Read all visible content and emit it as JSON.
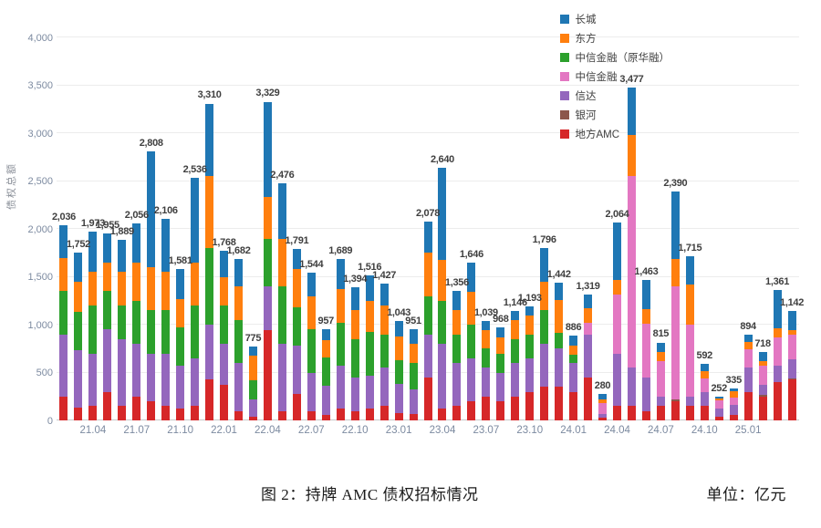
{
  "caption": {
    "title": "图 2：持牌 AMC 债权招标情况",
    "unit": "单位：亿元"
  },
  "chart_data": {
    "type": "bar",
    "stacked": true,
    "title": "持牌 AMC 债权招标情况",
    "ylabel": "债权总额",
    "unit": "亿元",
    "ylim": [
      0,
      4000
    ],
    "y_tick_step": 500,
    "grid": true,
    "legend_position": "top-right-inside",
    "legend": [
      {
        "name": "长城",
        "color": "#1f77b4"
      },
      {
        "name": "东方",
        "color": "#ff7f0e"
      },
      {
        "name": "中信金融（原华融）",
        "color": "#2ca02c"
      },
      {
        "name": "中信金融",
        "color": "#e377c2"
      },
      {
        "name": "信达",
        "color": "#9467bd"
      },
      {
        "name": "银河",
        "color": "#8c564b"
      },
      {
        "name": "地方AMC",
        "color": "#d62728"
      }
    ],
    "stack_order_bottom_to_top": [
      "地方AMC",
      "银河",
      "信达",
      "中信金融",
      "中信金融（原华融）",
      "东方",
      "长城"
    ],
    "segment_colors_bottom_to_top": [
      "#d62728",
      "#8c564b",
      "#9467bd",
      "#e377c2",
      "#2ca02c",
      "#ff7f0e",
      "#1f77b4"
    ],
    "x_tick_labels": [
      {
        "label": "21.04",
        "bar_index": 2
      },
      {
        "label": "21.07",
        "bar_index": 5
      },
      {
        "label": "21.10",
        "bar_index": 8
      },
      {
        "label": "22.01",
        "bar_index": 11
      },
      {
        "label": "22.04",
        "bar_index": 14
      },
      {
        "label": "22.07",
        "bar_index": 17
      },
      {
        "label": "22.10",
        "bar_index": 20
      },
      {
        "label": "23.01",
        "bar_index": 23
      },
      {
        "label": "23.04",
        "bar_index": 26
      },
      {
        "label": "23.07",
        "bar_index": 29
      },
      {
        "label": "23.10",
        "bar_index": 32
      },
      {
        "label": "24.01",
        "bar_index": 35
      },
      {
        "label": "24.04",
        "bar_index": 38
      },
      {
        "label": "24.07",
        "bar_index": 41
      },
      {
        "label": "24.10",
        "bar_index": 44
      },
      {
        "label": "25.01",
        "bar_index": 47
      }
    ],
    "bars": [
      {
        "label": "2,036",
        "total": 2036,
        "segments": [
          250,
          0,
          650,
          0,
          450,
          350,
          336
        ]
      },
      {
        "label": "1,752",
        "total": 1752,
        "segments": [
          130,
          0,
          600,
          0,
          400,
          320,
          302
        ]
      },
      {
        "label": "1,973",
        "total": 1973,
        "segments": [
          150,
          0,
          550,
          0,
          500,
          350,
          423
        ]
      },
      {
        "label": "1,955",
        "total": 1955,
        "segments": [
          300,
          0,
          650,
          0,
          400,
          300,
          305
        ]
      },
      {
        "label": "1,889",
        "total": 1889,
        "segments": [
          150,
          0,
          700,
          0,
          350,
          350,
          339
        ]
      },
      {
        "label": "2,056",
        "total": 2056,
        "segments": [
          250,
          0,
          550,
          0,
          450,
          400,
          406
        ]
      },
      {
        "label": "2,808",
        "total": 2808,
        "segments": [
          200,
          0,
          500,
          0,
          450,
          450,
          1208
        ]
      },
      {
        "label": "2,106",
        "total": 2106,
        "segments": [
          150,
          0,
          550,
          0,
          450,
          400,
          556
        ]
      },
      {
        "label": "1,581",
        "total": 1581,
        "segments": [
          120,
          0,
          450,
          0,
          400,
          300,
          311
        ]
      },
      {
        "label": "2,536",
        "total": 2536,
        "segments": [
          150,
          0,
          500,
          0,
          550,
          450,
          886
        ]
      },
      {
        "label": "3,310",
        "total": 3310,
        "segments": [
          430,
          0,
          570,
          0,
          800,
          750,
          760
        ]
      },
      {
        "label": "1,768",
        "total": 1768,
        "segments": [
          370,
          0,
          430,
          0,
          400,
          300,
          268
        ]
      },
      {
        "label": "1,682",
        "total": 1682,
        "segments": [
          100,
          0,
          500,
          0,
          450,
          350,
          282
        ]
      },
      {
        "label": "775",
        "total": 775,
        "segments": [
          40,
          0,
          180,
          0,
          200,
          255,
          100
        ]
      },
      {
        "label": "3,329",
        "total": 3329,
        "segments": [
          940,
          0,
          460,
          0,
          500,
          430,
          999
        ]
      },
      {
        "label": "2,476",
        "total": 2476,
        "segments": [
          100,
          0,
          700,
          0,
          600,
          500,
          576
        ]
      },
      {
        "label": "1,791",
        "total": 1791,
        "segments": [
          280,
          0,
          500,
          0,
          400,
          400,
          211
        ]
      },
      {
        "label": "1,544",
        "total": 1544,
        "segments": [
          100,
          0,
          400,
          0,
          450,
          350,
          244
        ]
      },
      {
        "label": "957",
        "total": 957,
        "segments": [
          60,
          0,
          300,
          0,
          300,
          180,
          117
        ]
      },
      {
        "label": "1,689",
        "total": 1689,
        "segments": [
          120,
          0,
          450,
          0,
          450,
          350,
          319
        ]
      },
      {
        "label": "1,394",
        "total": 1394,
        "segments": [
          100,
          0,
          350,
          0,
          400,
          300,
          244
        ]
      },
      {
        "label": "1,516",
        "total": 1516,
        "segments": [
          120,
          0,
          350,
          0,
          450,
          330,
          266
        ]
      },
      {
        "label": "1,427",
        "total": 1427,
        "segments": [
          150,
          0,
          400,
          0,
          350,
          300,
          227
        ]
      },
      {
        "label": "1,043",
        "total": 1043,
        "segments": [
          80,
          0,
          300,
          0,
          250,
          250,
          163
        ]
      },
      {
        "label": "951",
        "total": 951,
        "segments": [
          70,
          0,
          250,
          0,
          280,
          200,
          151
        ]
      },
      {
        "label": "2,078",
        "total": 2078,
        "segments": [
          450,
          0,
          450,
          0,
          400,
          450,
          328
        ]
      },
      {
        "label": "2,640",
        "total": 2640,
        "segments": [
          120,
          0,
          680,
          0,
          450,
          430,
          960
        ]
      },
      {
        "label": "1,356",
        "total": 1356,
        "segments": [
          150,
          0,
          450,
          0,
          300,
          256,
          200
        ]
      },
      {
        "label": "1,646",
        "total": 1646,
        "segments": [
          200,
          0,
          450,
          0,
          350,
          346,
          300
        ]
      },
      {
        "label": "1,039",
        "total": 1039,
        "segments": [
          250,
          0,
          300,
          0,
          200,
          189,
          100
        ]
      },
      {
        "label": "968",
        "total": 968,
        "segments": [
          200,
          0,
          300,
          0,
          200,
          168,
          100
        ]
      },
      {
        "label": "1,146",
        "total": 1146,
        "segments": [
          250,
          0,
          350,
          0,
          250,
          196,
          100
        ]
      },
      {
        "label": "1,193",
        "total": 1193,
        "segments": [
          300,
          0,
          350,
          0,
          250,
          193,
          100
        ]
      },
      {
        "label": "1,796",
        "total": 1796,
        "segments": [
          350,
          0,
          450,
          0,
          350,
          300,
          346
        ]
      },
      {
        "label": "1,442",
        "total": 1442,
        "segments": [
          350,
          0,
          400,
          0,
          160,
          350,
          182
        ]
      },
      {
        "label": "886",
        "total": 886,
        "segments": [
          300,
          0,
          300,
          0,
          86,
          100,
          100
        ]
      },
      {
        "label": "1,319",
        "total": 1319,
        "segments": [
          450,
          0,
          450,
          119,
          0,
          150,
          150
        ]
      },
      {
        "label": "280",
        "total": 280,
        "segments": [
          30,
          0,
          40,
          110,
          0,
          40,
          60
        ]
      },
      {
        "label": "2,064",
        "total": 2064,
        "segments": [
          150,
          0,
          550,
          614,
          0,
          150,
          600
        ]
      },
      {
        "label": "3,477",
        "total": 3477,
        "segments": [
          150,
          0,
          400,
          2000,
          0,
          427,
          500
        ]
      },
      {
        "label": "1,463",
        "total": 1463,
        "segments": [
          100,
          0,
          350,
          563,
          0,
          150,
          300
        ]
      },
      {
        "label": "815",
        "total": 815,
        "segments": [
          150,
          0,
          100,
          365,
          0,
          100,
          100
        ]
      },
      {
        "label": "2,390",
        "total": 2390,
        "segments": [
          200,
          20,
          0,
          1180,
          0,
          290,
          700
        ]
      },
      {
        "label": "1,715",
        "total": 1715,
        "segments": [
          150,
          0,
          100,
          750,
          0,
          415,
          300
        ]
      },
      {
        "label": "592",
        "total": 592,
        "segments": [
          150,
          0,
          150,
          142,
          0,
          75,
          75
        ]
      },
      {
        "label": "252",
        "total": 252,
        "segments": [
          40,
          0,
          80,
          92,
          0,
          20,
          20
        ]
      },
      {
        "label": "335",
        "total": 335,
        "segments": [
          60,
          0,
          100,
          75,
          0,
          70,
          30
        ]
      },
      {
        "label": "894",
        "total": 894,
        "segments": [
          300,
          0,
          250,
          194,
          0,
          75,
          75
        ]
      },
      {
        "label": "718",
        "total": 718,
        "segments": [
          250,
          18,
          100,
          200,
          0,
          50,
          100
        ]
      },
      {
        "label": "1,361",
        "total": 1361,
        "segments": [
          400,
          0,
          170,
          300,
          0,
          91,
          400
        ]
      },
      {
        "label": "1,142",
        "total": 1142,
        "segments": [
          430,
          12,
          200,
          250,
          0,
          50,
          200
        ]
      }
    ]
  }
}
